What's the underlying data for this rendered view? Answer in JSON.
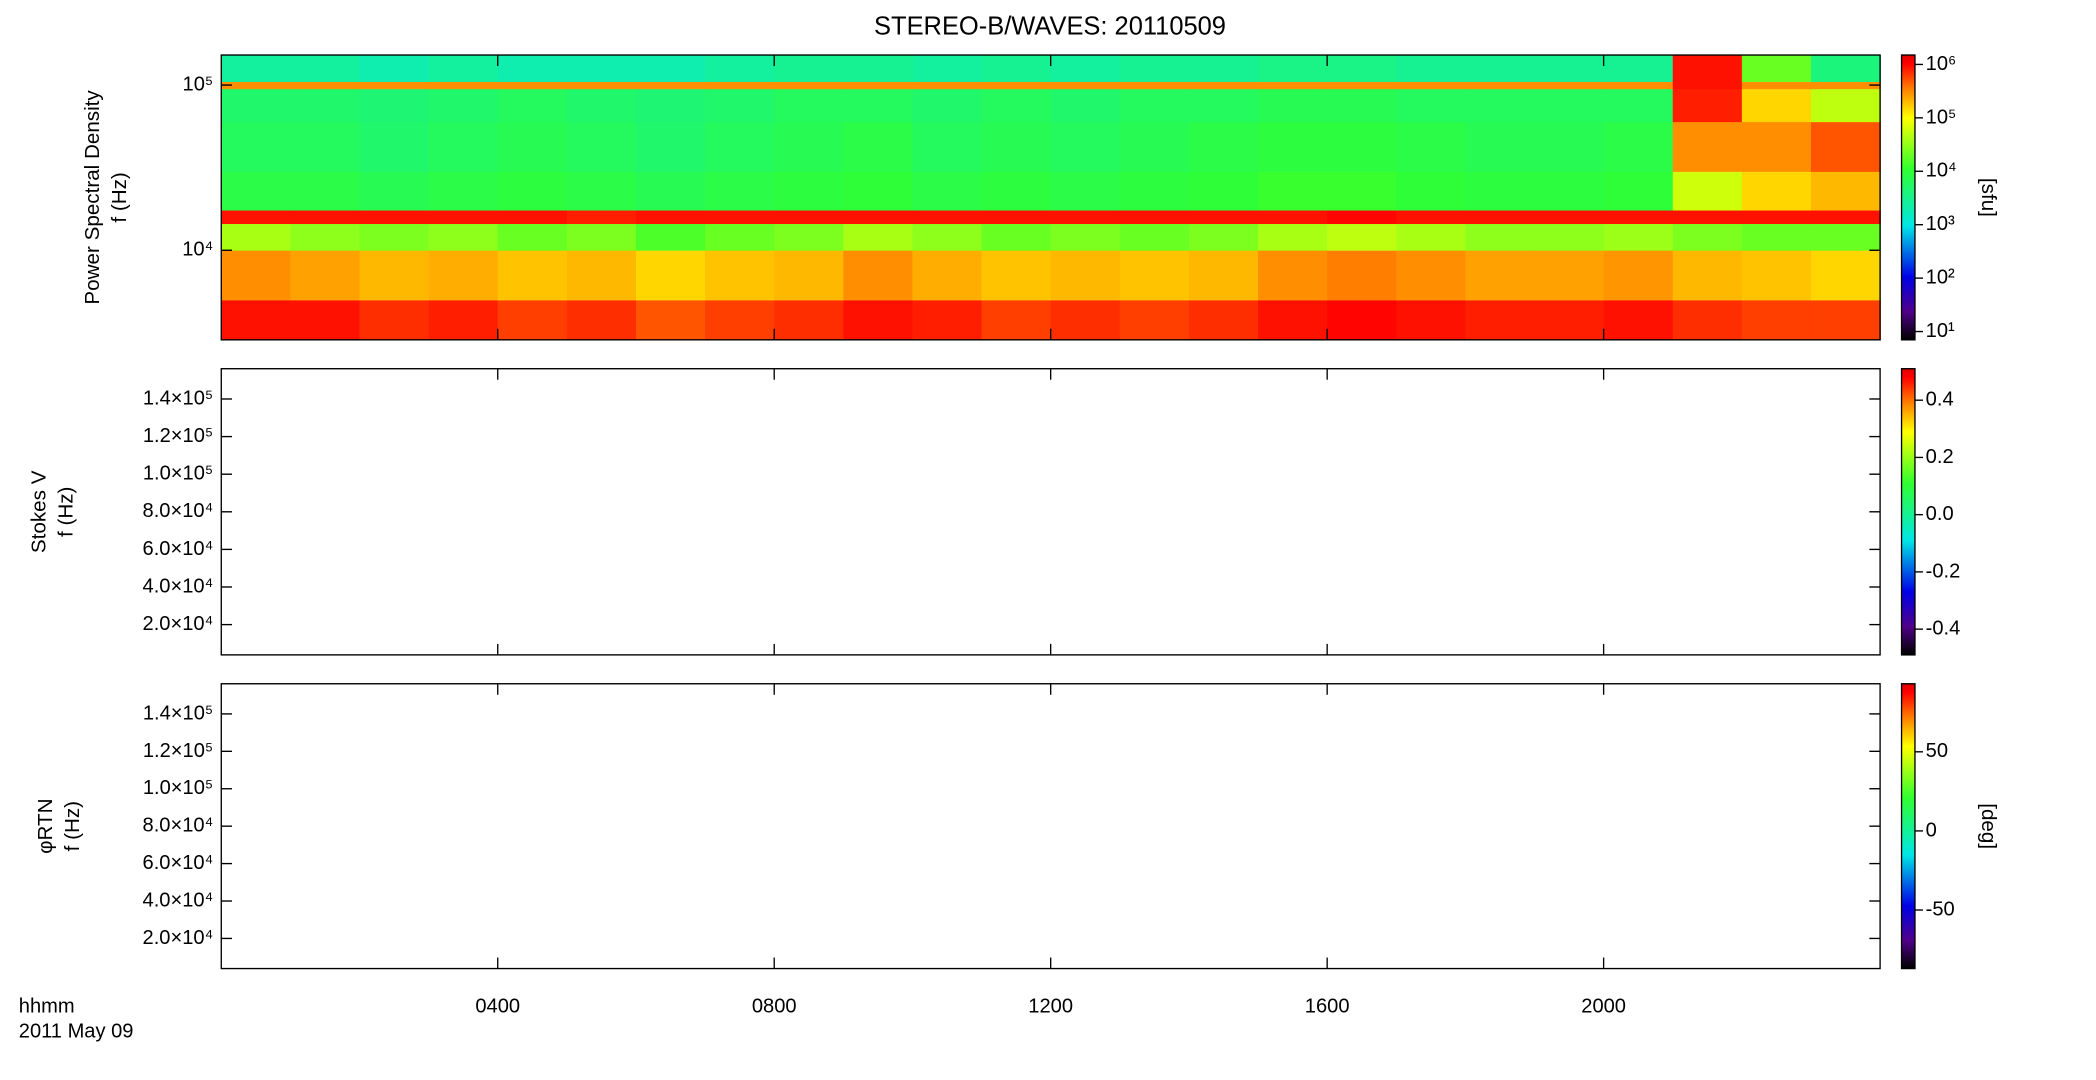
{
  "chart_data": [
    {
      "type": "heatmap",
      "title": "STEREO-B/WAVES: 20110509",
      "ylabel": [
        "Power Spectral Density",
        "f (Hz)"
      ],
      "zlabel": "[sfu]",
      "log_y": true,
      "log_z": true,
      "x_bins": [
        0,
        1,
        2,
        3,
        4,
        5,
        6,
        7,
        8,
        9,
        10,
        11,
        12,
        13,
        14,
        15,
        16,
        17,
        18,
        19,
        20,
        21,
        22,
        23,
        24
      ],
      "y_bins": [
        2870,
        5000,
        10000,
        14500,
        17500,
        30000,
        60000,
        95000,
        105000,
        152000
      ],
      "z": [
        [
          900000,
          900000,
          700000,
          800000,
          600000,
          700000,
          500000,
          600000,
          700000,
          900000,
          800000,
          600000,
          700000,
          600000,
          700000,
          900000,
          1000000,
          900000,
          800000,
          800000,
          900000,
          700000,
          600000,
          600000
        ],
        [
          300000,
          250000,
          200000,
          220000,
          180000,
          200000,
          150000,
          180000,
          200000,
          300000,
          220000,
          180000,
          200000,
          180000,
          200000,
          300000,
          350000,
          300000,
          250000,
          250000,
          280000,
          200000,
          180000,
          150000
        ],
        [
          40000,
          30000,
          25000,
          30000,
          20000,
          25000,
          15000,
          20000,
          25000,
          40000,
          30000,
          20000,
          25000,
          20000,
          25000,
          40000,
          50000,
          40000,
          30000,
          30000,
          35000,
          25000,
          20000,
          20000
        ],
        [
          900000,
          900000,
          900000,
          900000,
          900000,
          800000,
          900000,
          900000,
          900000,
          900000,
          900000,
          900000,
          900000,
          900000,
          900000,
          900000,
          1000000,
          900000,
          900000,
          900000,
          900000,
          900000,
          900000,
          900000
        ],
        [
          8000,
          8000,
          7000,
          8000,
          9000,
          8000,
          7000,
          8000,
          9000,
          10000,
          8000,
          9000,
          8000,
          9000,
          10000,
          12000,
          12000,
          10000,
          9000,
          9000,
          10000,
          60000,
          150000,
          200000
        ],
        [
          6000,
          6000,
          5000,
          6000,
          7000,
          6000,
          5000,
          6000,
          7000,
          8000,
          6000,
          7000,
          6000,
          7000,
          8000,
          9000,
          9000,
          8000,
          7000,
          7000,
          8000,
          300000,
          300000,
          500000
        ],
        [
          5000,
          5000,
          4500,
          5000,
          6000,
          5000,
          4500,
          5000,
          6000,
          6000,
          5000,
          6000,
          5000,
          6000,
          6000,
          7000,
          7000,
          6000,
          6000,
          6000,
          6000,
          800000,
          150000,
          50000
        ],
        [
          300000,
          300000,
          300000,
          300000,
          300000,
          300000,
          300000,
          300000,
          300000,
          300000,
          300000,
          300000,
          300000,
          300000,
          300000,
          300000,
          300000,
          300000,
          300000,
          300000,
          300000,
          900000,
          300000,
          300000
        ],
        [
          2500,
          2500,
          2000,
          2500,
          2000,
          2000,
          2000,
          2500,
          3000,
          3000,
          2500,
          3000,
          2500,
          3000,
          3000,
          3500,
          3500,
          3000,
          3000,
          3000,
          3000,
          900000,
          20000,
          4000
        ]
      ],
      "xlim": [
        0,
        24
      ],
      "ylim": [
        2870,
        152000
      ],
      "yticks": [
        {
          "value": 10000,
          "label": "10⁴"
        },
        {
          "value": 100000,
          "label": "10⁵"
        }
      ],
      "zlim": [
        7,
        1500000
      ],
      "zticks": [
        {
          "value": 10,
          "label": "10¹"
        },
        {
          "value": 100,
          "label": "10²"
        },
        {
          "value": 1000,
          "label": "10³"
        },
        {
          "value": 10000,
          "label": "10⁴"
        },
        {
          "value": 100000,
          "label": "10⁵"
        },
        {
          "value": 1000000,
          "label": "10⁶"
        }
      ]
    },
    {
      "type": "heatmap",
      "ylabel": [
        "Stokes V",
        "f (Hz)"
      ],
      "xlim": [
        0,
        24
      ],
      "ylim": [
        3900,
        156100
      ],
      "yticks": [
        {
          "value": 20000,
          "label": "2.0×10⁴"
        },
        {
          "value": 40000,
          "label": "4.0×10⁴"
        },
        {
          "value": 60000,
          "label": "6.0×10⁴"
        },
        {
          "value": 80000,
          "label": "8.0×10⁴"
        },
        {
          "value": 100000,
          "label": "1.0×10⁵"
        },
        {
          "value": 120000,
          "label": "1.2×10⁵"
        },
        {
          "value": 140000,
          "label": "1.4×10⁵"
        }
      ],
      "zlim": [
        -0.49,
        0.51
      ],
      "zticks": [
        {
          "value": -0.4,
          "label": "-0.4"
        },
        {
          "value": -0.2,
          "label": "-0.2"
        },
        {
          "value": 0,
          "label": "0.0"
        },
        {
          "value": 0.2,
          "label": "0.2"
        },
        {
          "value": 0.4,
          "label": "0.4"
        }
      ]
    },
    {
      "type": "heatmap",
      "ylabel": [
        "φRTN",
        "f (Hz)"
      ],
      "zlabel": "[deg]",
      "xlim": [
        0,
        24
      ],
      "ylim": [
        3900,
        156100
      ],
      "yticks": [
        {
          "value": 20000,
          "label": "2.0×10⁴"
        },
        {
          "value": 40000,
          "label": "4.0×10⁴"
        },
        {
          "value": 60000,
          "label": "6.0×10⁴"
        },
        {
          "value": 80000,
          "label": "8.0×10⁴"
        },
        {
          "value": 100000,
          "label": "1.0×10⁵"
        },
        {
          "value": 120000,
          "label": "1.2×10⁵"
        },
        {
          "value": 140000,
          "label": "1.4×10⁵"
        }
      ],
      "zlim": [
        -87,
        93
      ],
      "zticks": [
        -50,
        0,
        50
      ],
      "xticks": [
        {
          "value": 4,
          "label": "0400"
        },
        {
          "value": 8,
          "label": "0800"
        },
        {
          "value": 12,
          "label": "1200"
        },
        {
          "value": 16,
          "label": "1600"
        },
        {
          "value": 20,
          "label": "2000"
        }
      ],
      "xlabel": [
        "hhmm",
        "2011 May 09"
      ]
    }
  ]
}
